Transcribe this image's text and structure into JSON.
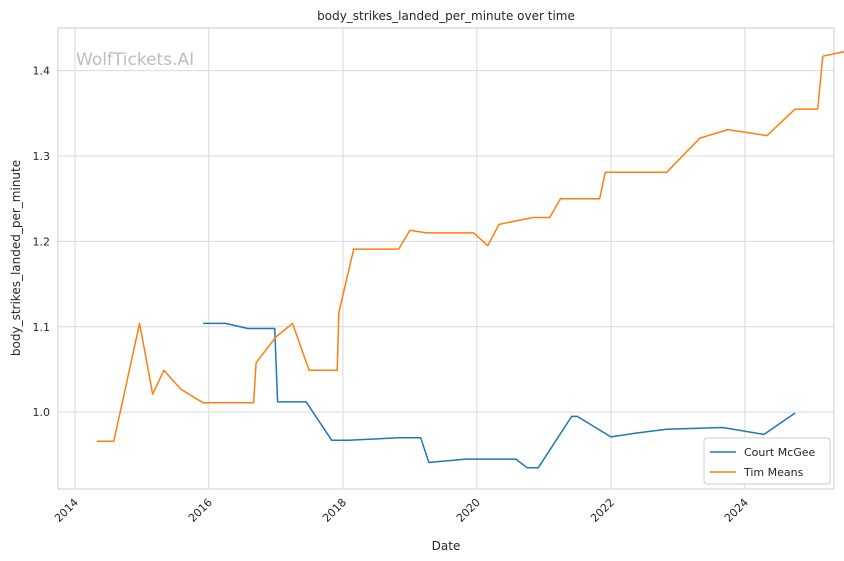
{
  "chart_data": {
    "type": "line",
    "title": "body_strikes_landed_per_minute over time",
    "xlabel": "Date",
    "ylabel": "body_strikes_landed_per_minute",
    "watermark": "WolfTickets.AI",
    "xlim": [
      "2013-10-01",
      "2025-05-01"
    ],
    "ylim": [
      0.91,
      1.45
    ],
    "x_ticks": [
      "2014",
      "2016",
      "2018",
      "2020",
      "2022",
      "2024"
    ],
    "y_ticks": [
      "1.0",
      "1.1",
      "1.2",
      "1.3",
      "1.4"
    ],
    "grid": true,
    "legend_position": "lower right",
    "series": [
      {
        "name": "Court McGee",
        "color": "#1f77b4",
        "points": [
          [
            "2015-12-01",
            1.104
          ],
          [
            "2016-04-01",
            1.104
          ],
          [
            "2016-08-01",
            1.098
          ],
          [
            "2016-12-25",
            1.098
          ],
          [
            "2017-01-10",
            1.012
          ],
          [
            "2017-06-15",
            1.012
          ],
          [
            "2017-11-01",
            0.967
          ],
          [
            "2018-02-01",
            0.967
          ],
          [
            "2018-11-01",
            0.97
          ],
          [
            "2019-03-01",
            0.97
          ],
          [
            "2019-04-15",
            0.941
          ],
          [
            "2019-11-01",
            0.945
          ],
          [
            "2020-08-01",
            0.945
          ],
          [
            "2020-10-01",
            0.935
          ],
          [
            "2020-12-01",
            0.935
          ],
          [
            "2021-06-01",
            0.995
          ],
          [
            "2021-07-01",
            0.995
          ],
          [
            "2022-01-01",
            0.971
          ],
          [
            "2022-06-01",
            0.976
          ],
          [
            "2022-11-01",
            0.98
          ],
          [
            "2023-09-01",
            0.982
          ],
          [
            "2024-04-15",
            0.974
          ],
          [
            "2024-10-01",
            0.999
          ]
        ]
      },
      {
        "name": "Tim Means",
        "color": "#ff7f0e",
        "points": [
          [
            "2014-05-01",
            0.966
          ],
          [
            "2014-08-01",
            0.966
          ],
          [
            "2014-12-20",
            1.104
          ],
          [
            "2015-03-01",
            1.021
          ],
          [
            "2015-05-01",
            1.049
          ],
          [
            "2015-08-01",
            1.027
          ],
          [
            "2015-12-01",
            1.011
          ],
          [
            "2016-09-01",
            1.011
          ],
          [
            "2016-09-15",
            1.058
          ],
          [
            "2017-01-01",
            1.088
          ],
          [
            "2017-04-01",
            1.104
          ],
          [
            "2017-07-01",
            1.049
          ],
          [
            "2017-12-01",
            1.049
          ],
          [
            "2017-12-10",
            1.117
          ],
          [
            "2018-03-01",
            1.191
          ],
          [
            "2018-11-01",
            1.191
          ],
          [
            "2019-01-01",
            1.213
          ],
          [
            "2019-04-01",
            1.21
          ],
          [
            "2019-12-15",
            1.21
          ],
          [
            "2020-03-01",
            1.195
          ],
          [
            "2020-05-01",
            1.22
          ],
          [
            "2020-11-01",
            1.228
          ],
          [
            "2021-02-01",
            1.228
          ],
          [
            "2021-04-01",
            1.25
          ],
          [
            "2021-11-01",
            1.25
          ],
          [
            "2021-12-01",
            1.281
          ],
          [
            "2022-11-01",
            1.281
          ],
          [
            "2023-05-01",
            1.321
          ],
          [
            "2023-10-01",
            1.331
          ],
          [
            "2024-05-01",
            1.324
          ],
          [
            "2024-10-01",
            1.355
          ],
          [
            "2025-02-01",
            1.355
          ],
          [
            "2025-03-01",
            1.417
          ],
          [
            "2025-08-01",
            1.424
          ]
        ]
      }
    ]
  }
}
